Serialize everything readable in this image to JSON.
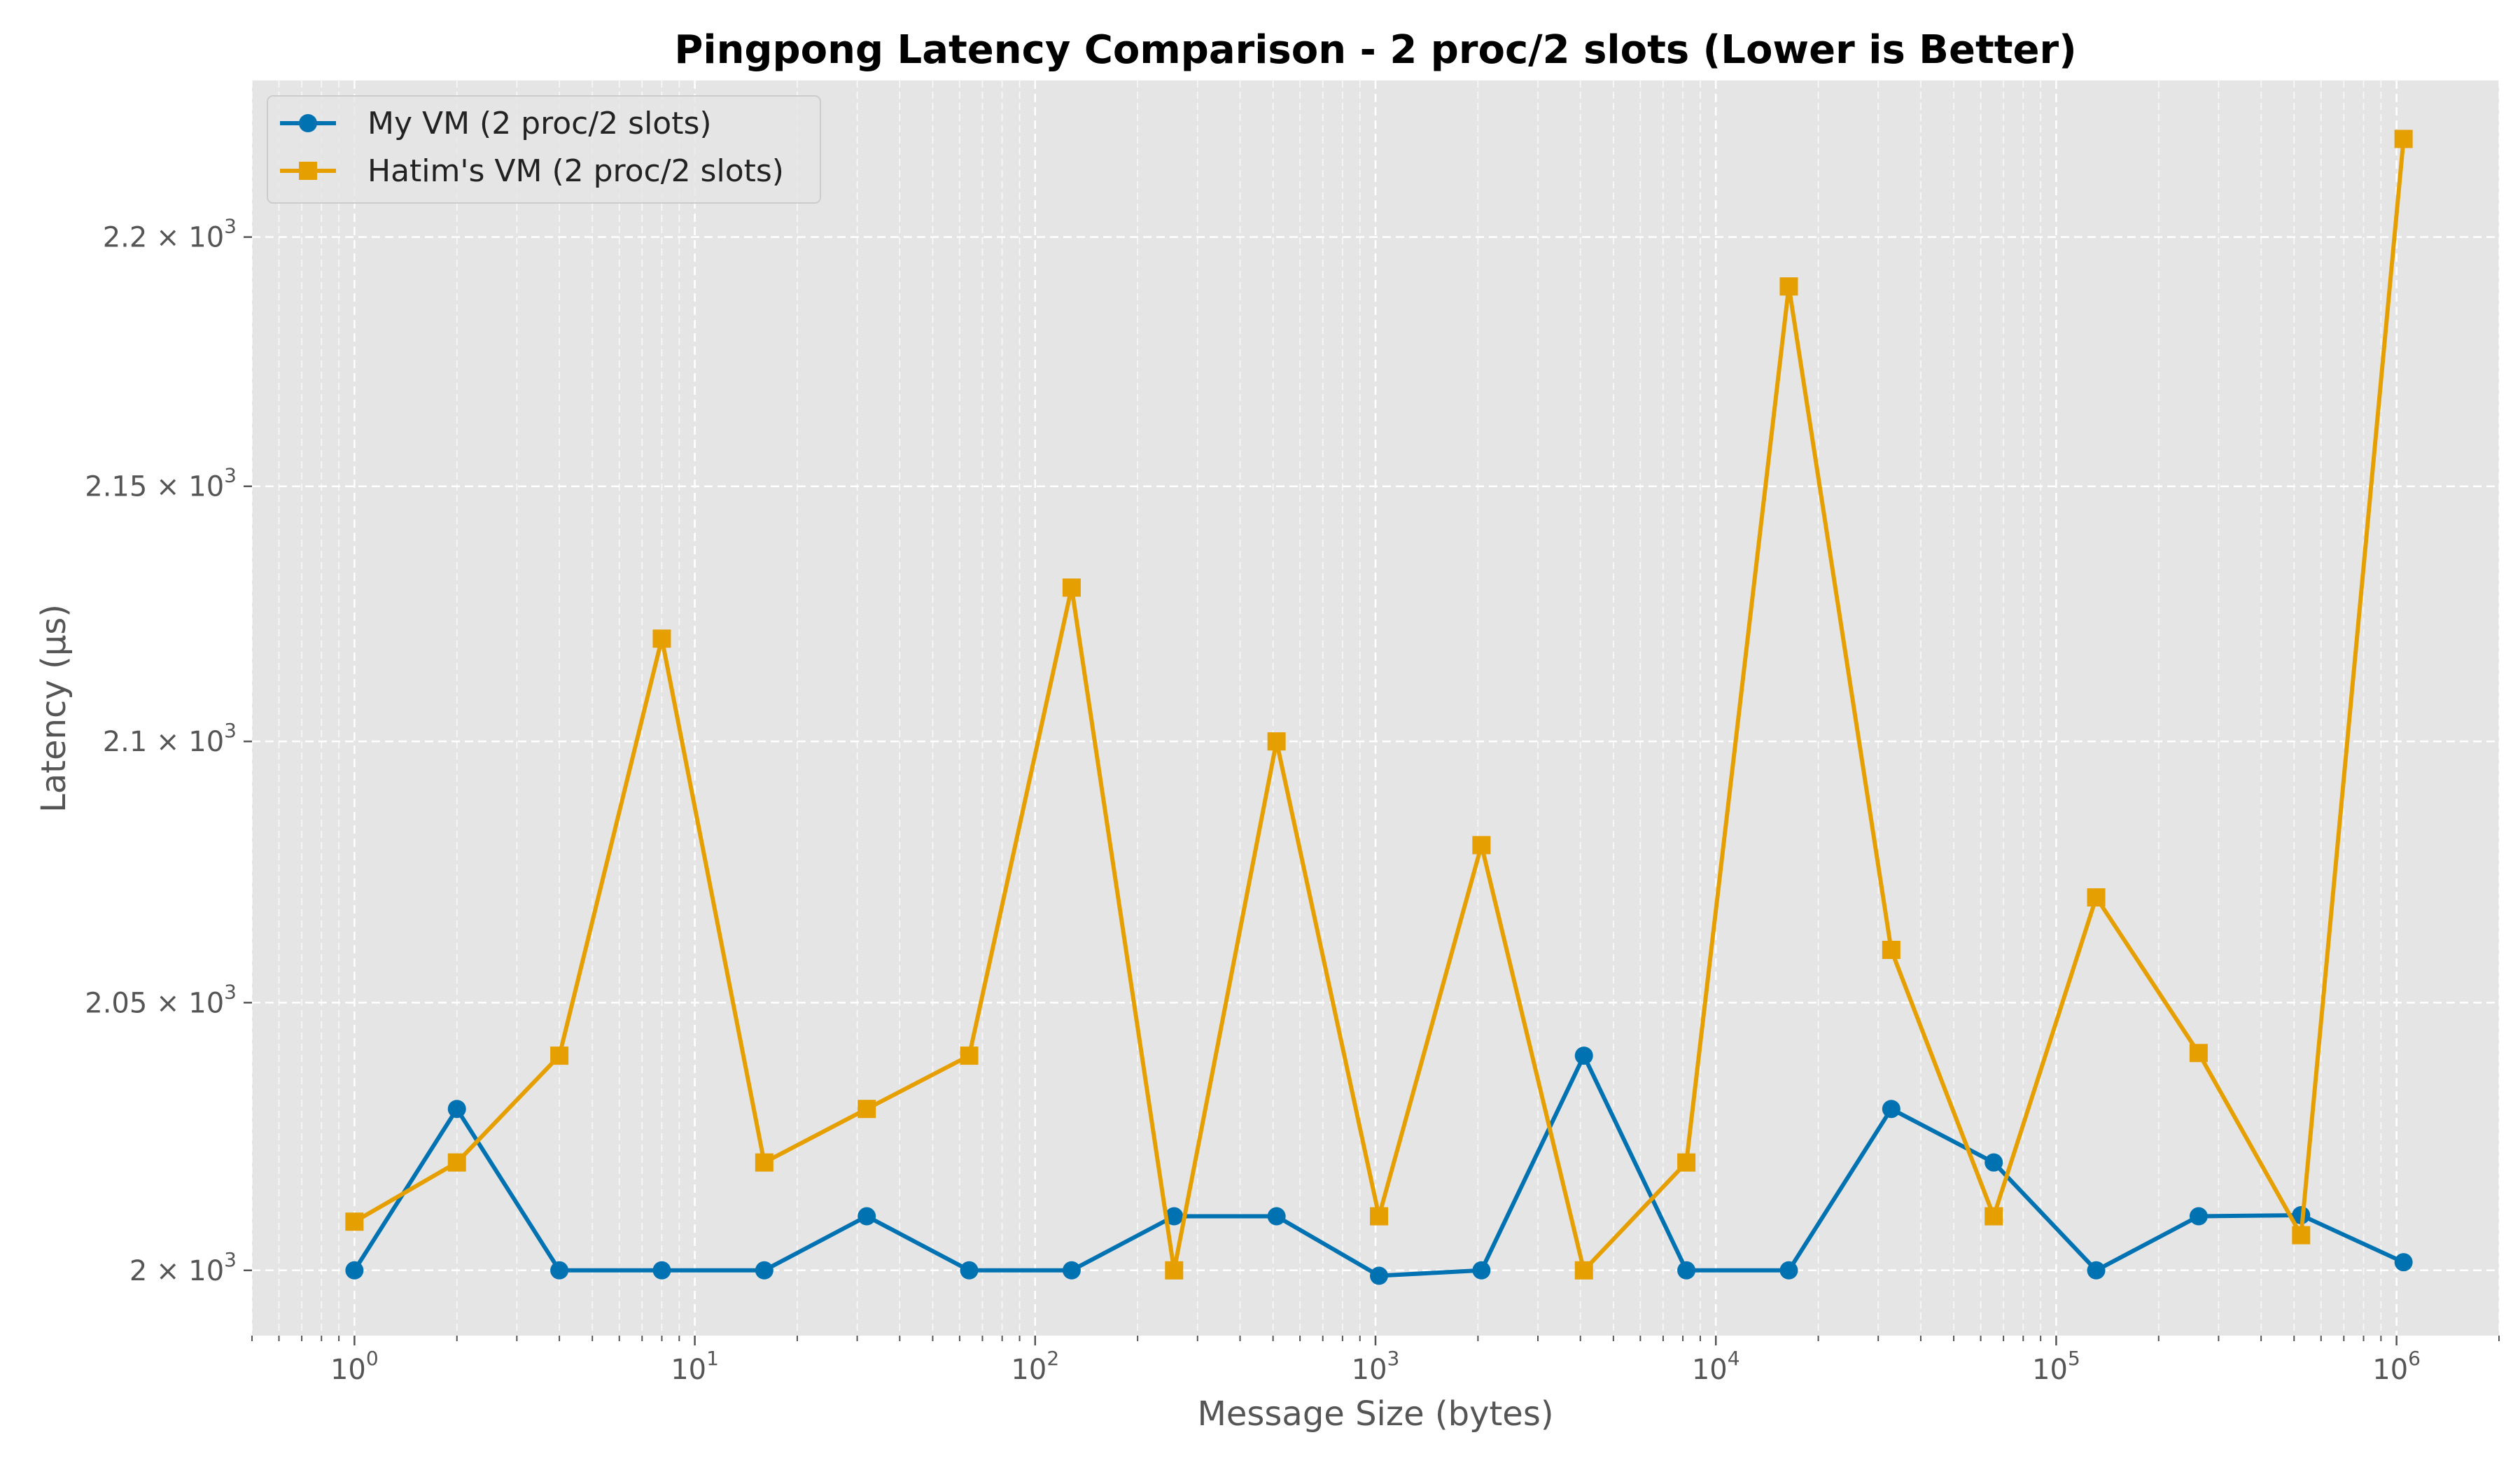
{
  "chart_data": {
    "type": "line",
    "title": "Pingpong Latency Comparison - 2 proc/2 slots (Lower is Better)",
    "xlabel": "Message Size (bytes)",
    "ylabel": "Latency (µs)",
    "x_scale": "log",
    "y_scale": "log",
    "xlim": [
      0.5,
      2000000
    ],
    "ylim": [
      1988,
      2232
    ],
    "grid": true,
    "legend_position": "top-left",
    "x": [
      1,
      2,
      4,
      8,
      16,
      32,
      64,
      128,
      256,
      512,
      1024,
      2048,
      4096,
      8192,
      16384,
      32768,
      65536,
      131072,
      262144,
      524288,
      1048576
    ],
    "x_major_ticks": [
      {
        "value": 1,
        "label": "10",
        "exp": "0"
      },
      {
        "value": 10,
        "label": "10",
        "exp": "1"
      },
      {
        "value": 100,
        "label": "10",
        "exp": "2"
      },
      {
        "value": 1000,
        "label": "10",
        "exp": "3"
      },
      {
        "value": 10000,
        "label": "10",
        "exp": "4"
      },
      {
        "value": 100000,
        "label": "10",
        "exp": "5"
      },
      {
        "value": 1000000,
        "label": "10",
        "exp": "6"
      }
    ],
    "y_ticks": [
      {
        "value": 2000,
        "mantissa": "2",
        "exp": "3"
      },
      {
        "value": 2050,
        "mantissa": "2.05",
        "exp": "3"
      },
      {
        "value": 2100,
        "mantissa": "2.1",
        "exp": "3"
      },
      {
        "value": 2150,
        "mantissa": "2.15",
        "exp": "3"
      },
      {
        "value": 2200,
        "mantissa": "2.2",
        "exp": "3"
      }
    ],
    "series": [
      {
        "name": "My VM (2 proc/2 slots)",
        "color": "#0072b2",
        "marker": "circle",
        "values": [
          2000,
          2030,
          2000,
          2000,
          2000,
          2010,
          2000,
          2000,
          2010,
          2010,
          1999,
          2000,
          2040,
          2000,
          2000,
          2030,
          2020,
          2000,
          2010,
          2010.2,
          2001.5
        ]
      },
      {
        "name": "Hatim's VM (2 proc/2 slots)",
        "color": "#e69f00",
        "marker": "square",
        "values": [
          2009,
          2020,
          2040,
          2120,
          2020,
          2030,
          2040,
          2130,
          2000,
          2100,
          2010,
          2080,
          2000,
          2020,
          2190,
          2060,
          2010,
          2070,
          2040.5,
          2006.5,
          2220
        ]
      }
    ]
  }
}
